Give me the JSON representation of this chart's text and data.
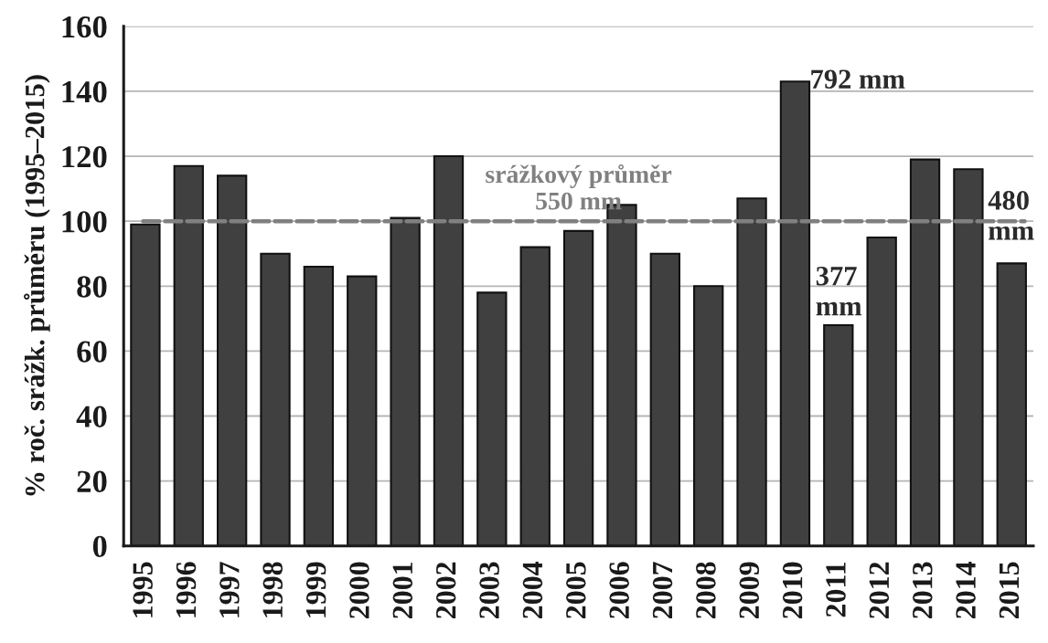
{
  "chart_data": {
    "type": "bar",
    "ylabel": "% roč. srážk. průměru (1995–2015)",
    "categories": [
      "1995",
      "1996",
      "1997",
      "1998",
      "1999",
      "2000",
      "2001",
      "2002",
      "2003",
      "2004",
      "2005",
      "2006",
      "2007",
      "2008",
      "2009",
      "2010",
      "2011",
      "2012",
      "2013",
      "2014",
      "2015"
    ],
    "values": [
      99,
      117,
      114,
      90,
      86,
      83,
      101,
      120,
      78,
      92,
      97,
      105,
      90,
      80,
      107,
      143,
      68,
      95,
      119,
      116,
      87
    ],
    "color": "#404040",
    "ylim": [
      0,
      160
    ],
    "yticks": [
      0,
      20,
      40,
      60,
      80,
      100,
      120,
      140,
      160
    ],
    "grid": "y",
    "ref_lines": [
      {
        "axis": "y",
        "value": 100,
        "label": "srážkový průměr\n550 mm",
        "color": "#808080",
        "line_style": "dashed"
      }
    ],
    "annotations": [
      {
        "text": "792 mm",
        "x": "2010",
        "y": 143
      },
      {
        "text": "377\nmm",
        "x": "2011",
        "y": 68
      },
      {
        "text": "480\nmm",
        "x": "2015",
        "y": 87
      }
    ]
  }
}
